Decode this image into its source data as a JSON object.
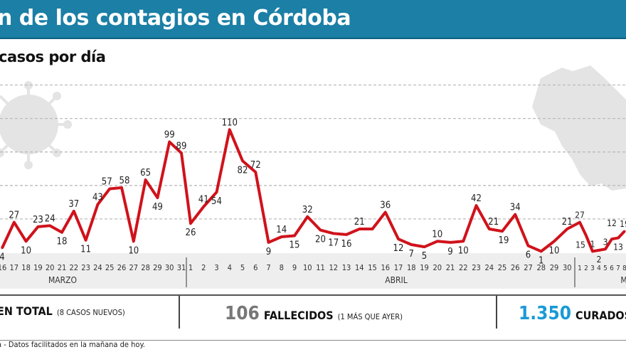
{
  "header": {
    "title": "n de los contagios en Córdoba",
    "subtitle": "casos por día"
  },
  "colors": {
    "title_bg": "#1b7fa6",
    "line": "#d0121b",
    "curados": "#1a9ad6",
    "fallecidos": "#777777"
  },
  "chart_data": {
    "type": "line",
    "title": "casos por día",
    "xlabel": "",
    "ylabel": "",
    "ylim": [
      0,
      150
    ],
    "gridlines": [
      30,
      60,
      90,
      120,
      150
    ],
    "grid": true,
    "months": [
      {
        "name": "MARZO",
        "days": [
          16,
          17,
          18,
          19,
          20,
          21,
          22,
          23,
          24,
          25,
          26,
          27,
          28,
          29,
          30,
          31
        ]
      },
      {
        "name": "ABRIL",
        "days": [
          1,
          2,
          3,
          4,
          5,
          6,
          7,
          8,
          9,
          10,
          11,
          12,
          13,
          14,
          15,
          16,
          17,
          18,
          19,
          20,
          21,
          22,
          23,
          24,
          25,
          26,
          27,
          28,
          29,
          30
        ]
      },
      {
        "name": "M",
        "days": [
          1,
          2,
          3,
          4,
          5,
          6,
          7,
          8
        ]
      }
    ],
    "values": [
      4,
      27,
      10,
      23,
      24,
      18,
      37,
      11,
      43,
      57,
      58,
      10,
      65,
      49,
      99,
      89,
      26,
      41,
      54,
      110,
      82,
      72,
      9,
      14,
      15,
      32,
      20,
      17,
      16,
      21,
      21,
      36,
      12,
      7,
      5,
      10,
      9,
      10,
      42,
      21,
      19,
      34,
      6,
      1,
      10,
      21,
      27,
      15,
      1,
      2,
      3,
      12,
      13,
      19
    ],
    "hidden_labels": [
      30
    ]
  },
  "stats": {
    "total_label": "EN TOTAL",
    "total_note": "(8 CASOS NUEVOS)",
    "fallecidos_value": "106",
    "fallecidos_label": "FALLECIDOS",
    "fallecidos_note": "(1 MÁS QUE AYER)",
    "curados_value": "1.350",
    "curados_label": "CURADOS"
  },
  "footnote": "a - Datos facilitados en la mañana de hoy."
}
